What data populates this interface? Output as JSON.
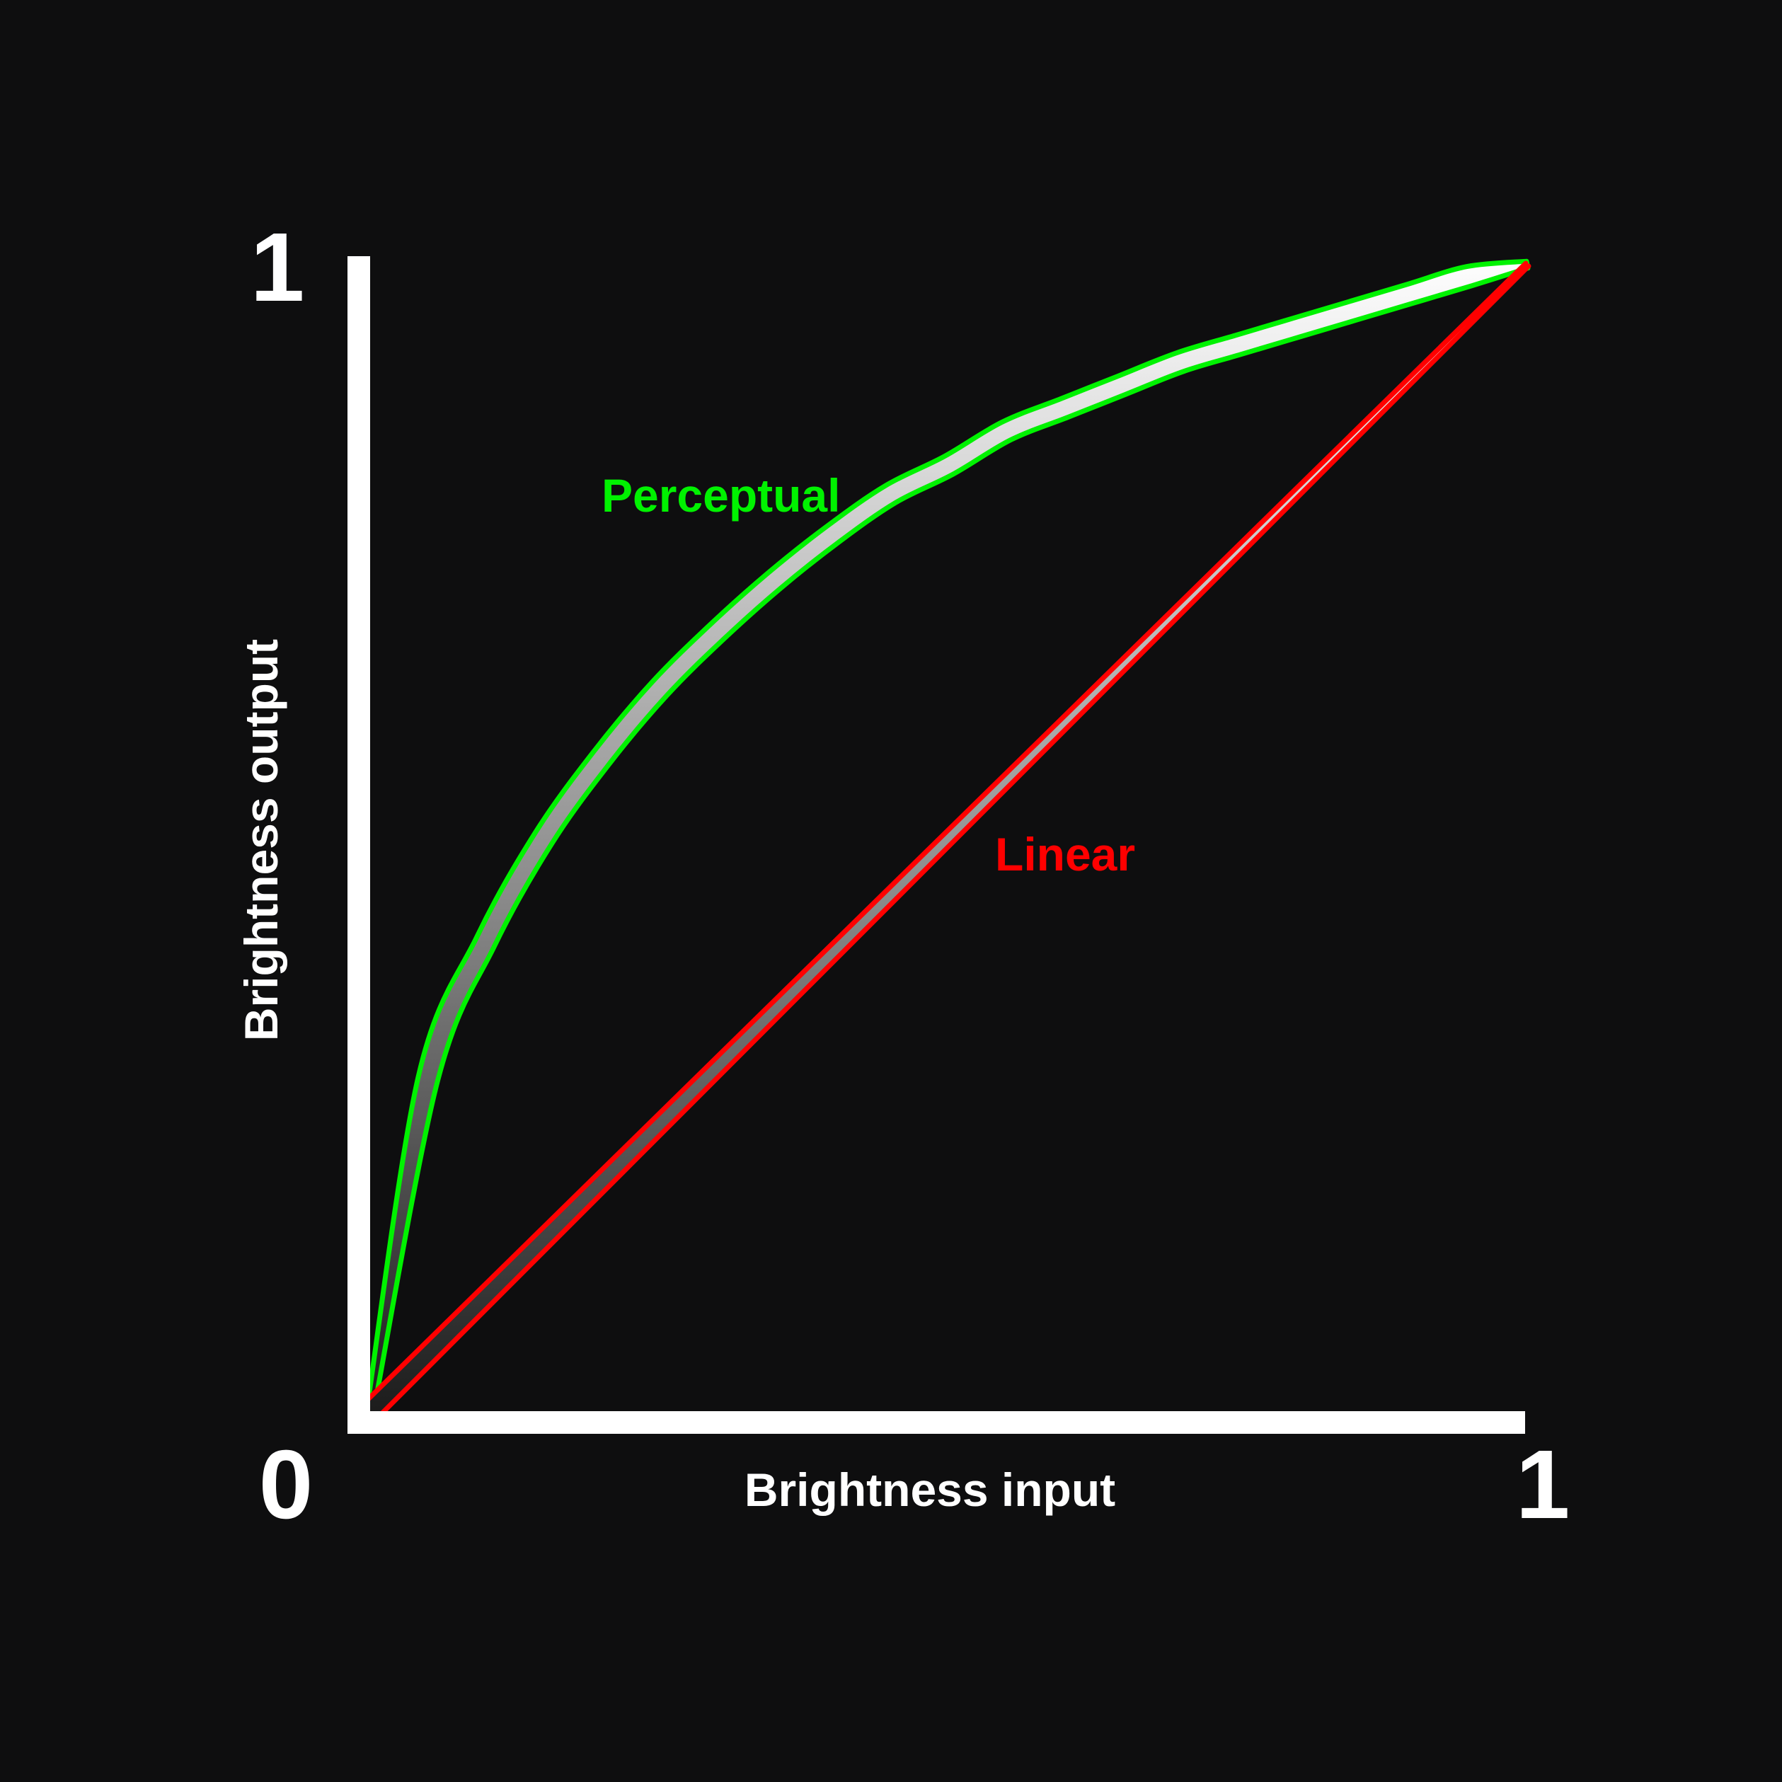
{
  "chart_data": {
    "type": "line",
    "title": "",
    "xlabel": "Brightness input",
    "ylabel": "Brightness output",
    "xlim": [
      0,
      1
    ],
    "ylim": [
      0,
      1
    ],
    "grid": false,
    "legend": "none",
    "ticks": {
      "origin": "0",
      "x_max": "1",
      "y_max": "1"
    },
    "colors": {
      "background": "#0e0e0f",
      "axis": "#ffffff",
      "perceptual": "#00f200",
      "linear": "#ff0000"
    },
    "series": [
      {
        "name": "Perceptual",
        "color": "#00f200",
        "x": [
          0,
          0.05,
          0.1,
          0.15,
          0.2,
          0.25,
          0.3,
          0.35,
          0.4,
          0.45,
          0.5,
          0.55,
          0.6,
          0.65,
          0.7,
          0.75,
          0.8,
          0.85,
          0.9,
          0.95,
          1
        ],
        "y": [
          0,
          0.29,
          0.41,
          0.5,
          0.57,
          0.63,
          0.68,
          0.725,
          0.765,
          0.8,
          0.825,
          0.855,
          0.875,
          0.895,
          0.915,
          0.93,
          0.945,
          0.96,
          0.975,
          0.99,
          1
        ]
      },
      {
        "name": "Linear",
        "color": "#ff0000",
        "x": [
          0,
          1
        ],
        "y": [
          0,
          1
        ]
      }
    ]
  }
}
